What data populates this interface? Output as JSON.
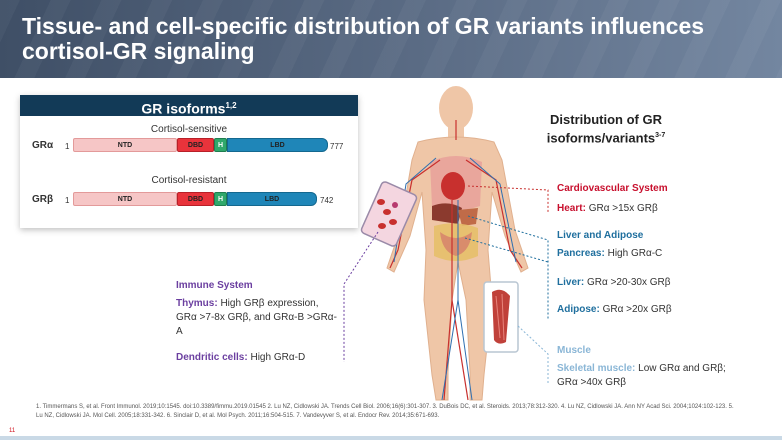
{
  "title": "Tissue- and cell-specific distribution of GR variants influences cortisol-GR signaling",
  "isoforms": {
    "heading": "GR isoforms",
    "heading_sup": "1,2",
    "rows": [
      {
        "name": "GRα",
        "start": "1",
        "end": "777",
        "subtitle": "Cortisol-sensitive",
        "segments": [
          "NTD",
          "DBD",
          "H",
          "LBD"
        ]
      },
      {
        "name": "GRβ",
        "start": "1",
        "end": "742",
        "subtitle": "Cortisol-resistant",
        "segments": [
          "NTD",
          "DBD",
          "H",
          "LBD"
        ]
      }
    ]
  },
  "distribution": {
    "title": "Distribution of GR isoforms/variants",
    "title_sup": "3-7"
  },
  "immune": {
    "heading": "Immune System",
    "thymus_label": "Thymus:",
    "thymus_text": "High GRβ expression, GRα >7-8x GRβ, and GRα-B >GRα-A",
    "dendritic_label": "Dendritic cells:",
    "dendritic_text": "High GRα-D"
  },
  "cardio": {
    "heading": "Cardiovascular System",
    "heart_label": "Heart:",
    "heart_text": "GRα >15x GRβ"
  },
  "liver_adipose": {
    "heading": "Liver and Adipose",
    "pancreas_label": "Pancreas:",
    "pancreas_text": "High GRα-C",
    "liver_label": "Liver:",
    "liver_text": "GRα >20-30x GRβ",
    "adipose_label": "Adipose:",
    "adipose_text": "GRα >20x GRβ"
  },
  "muscle": {
    "heading": "Muscle",
    "skeletal_label": "Skeletal muscle:",
    "skeletal_text": "Low GRα and GRβ; GRα >40x GRβ"
  },
  "references": "1. Timmermans S, et al. Front Immunol. 2019;10:1545. doi:10.3389/fimmu.2019.01545 2. Lu NZ, Cidlowski JA. Trends Cell Biol. 2006;16(6):301-307. 3. DuBois DC, et al. Steroids. 2013;78:312-320. 4. Lu NZ, Cidlowski JA. Ann NY Acad Sci. 2004;1024:102-123. 5. Lu NZ, Cidlowski JA. Mol Cell. 2005;18:331-342. 6. Sinclair D, et al. Mol Psych. 2011;16:504-515. 7. Vandevyver S, et al. Endocr Rev. 2014;35:671-693.",
  "page_number": "11",
  "colors": {
    "header": "#4a5a72",
    "cardio": "#c8102e",
    "liver": "#1f6f9e",
    "immune": "#6b3fa0",
    "muscle": "#8ab6d6"
  }
}
